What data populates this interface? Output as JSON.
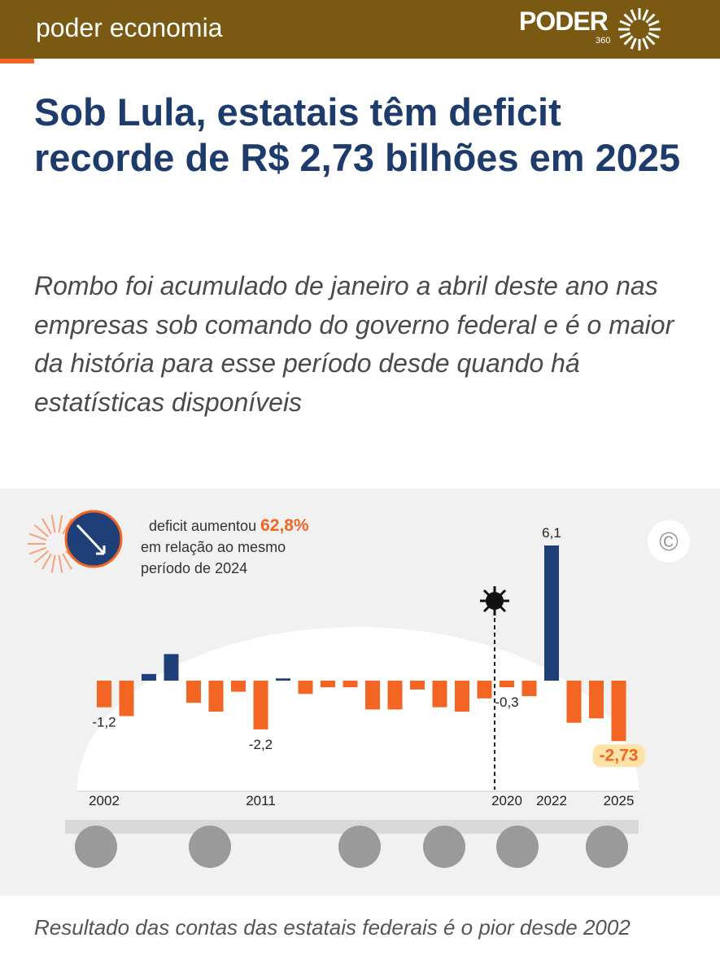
{
  "header": {
    "section": "poder economia",
    "logo": "PODER",
    "logo_sub": "360"
  },
  "headline": "Sob Lula, estatais têm deficit recorde de R$ 2,73 bilhões em 2025",
  "subtitle": "Rombo foi acumulado de janeiro a abril deste ano nas empresas sob comando do governo federal e é o maior da história para esse período desde quando há estatísticas disponíveis",
  "chart_data": {
    "type": "bar",
    "annotation": {
      "text": "deficit aumentou",
      "highlight": "62,8%",
      "rest": "em relação ao mesmo",
      "rest2": "período de 2024"
    },
    "copyright": "©",
    "categories": [
      "2002",
      null,
      null,
      null,
      null,
      null,
      null,
      "2011",
      null,
      null,
      null,
      null,
      null,
      null,
      null,
      null,
      null,
      null,
      "2020",
      null,
      "2022",
      null,
      null,
      "2025"
    ],
    "values": [
      -1.2,
      -1.6,
      0.3,
      1.2,
      -1.0,
      -1.4,
      -0.5,
      -2.2,
      0.1,
      -0.6,
      -0.3,
      -0.3,
      -1.3,
      -1.3,
      -0.4,
      -1.2,
      -1.4,
      -0.8,
      -0.3,
      -0.7,
      6.1,
      -1.9,
      -1.7,
      -2.73
    ],
    "value_labels": [
      "-1,2",
      null,
      null,
      null,
      null,
      null,
      null,
      "-2,2",
      null,
      null,
      null,
      null,
      null,
      null,
      null,
      null,
      null,
      null,
      "-0,3",
      null,
      "6,1",
      null,
      null,
      "-2,73"
    ],
    "positive_color": "#1f3f78",
    "negative_color": "#f26522"
  },
  "caption": "Resultado das contas das estatais federais é o pior desde 2002"
}
